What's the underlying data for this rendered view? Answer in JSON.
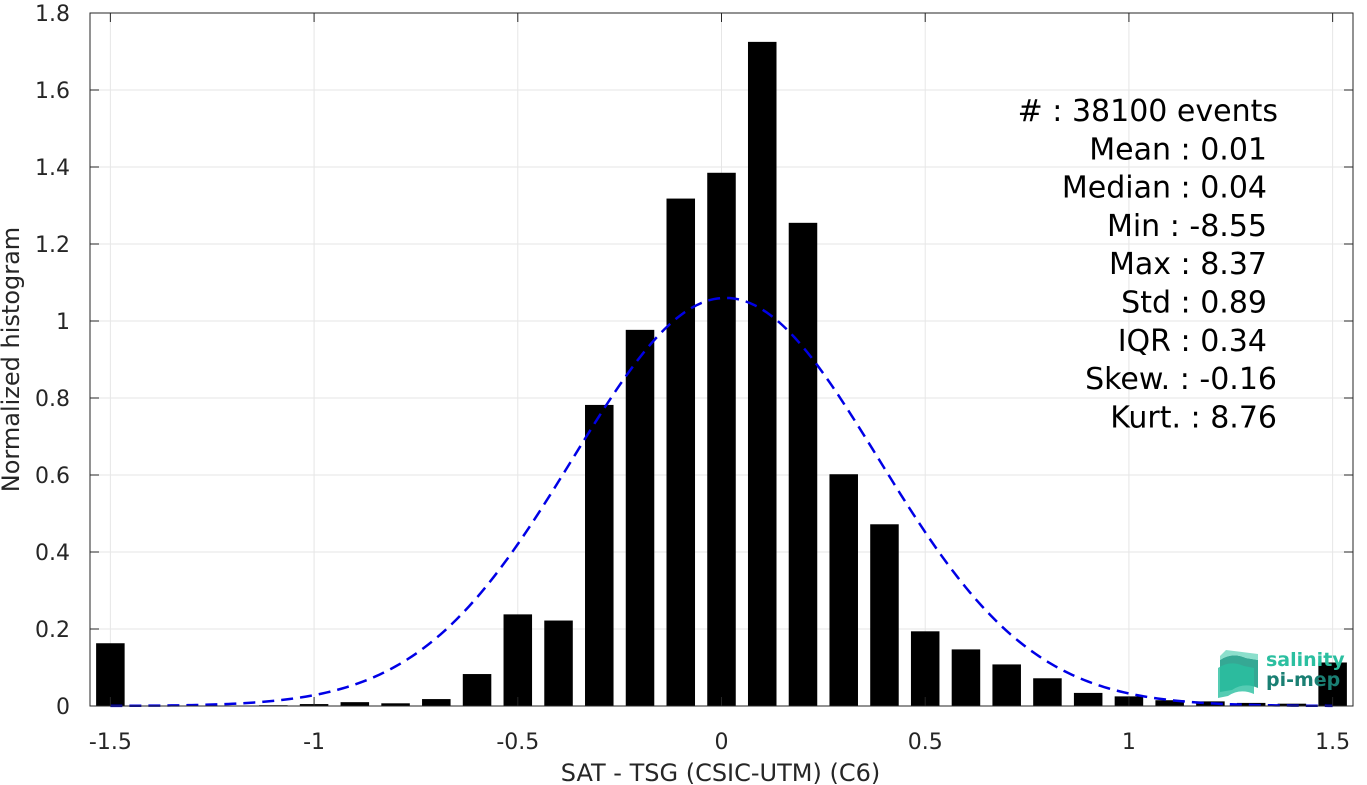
{
  "chart_data": {
    "type": "bar",
    "title": "",
    "xlabel": "SAT - TSG (CSIC-UTM) (C6)",
    "ylabel": "Normalized histogram",
    "xlim": [
      -1.55,
      1.55
    ],
    "ylim": [
      0,
      1.8
    ],
    "grid": true,
    "xticks": [
      -1.5,
      -1,
      -0.5,
      0,
      0.5,
      1,
      1.5
    ],
    "xtick_labels": [
      "-1.5",
      "-1",
      "-0.5",
      "0",
      "0.5",
      "1",
      "1.5"
    ],
    "yticks": [
      0,
      0.2,
      0.4,
      0.6,
      0.8,
      1,
      1.2,
      1.4,
      1.6,
      1.8
    ],
    "ytick_labels": [
      "0",
      "0.2",
      "0.4",
      "0.6",
      "0.8",
      "1",
      "1.2",
      "1.4",
      "1.6",
      "1.8"
    ],
    "bar_width": 0.07,
    "x": [
      -1.5,
      -1.4,
      -1.3,
      -1.2,
      -1.1,
      -1.0,
      -0.9,
      -0.8,
      -0.7,
      -0.6,
      -0.5,
      -0.4,
      -0.3,
      -0.2,
      -0.1,
      0.0,
      0.1,
      0.2,
      0.3,
      0.4,
      0.5,
      0.6,
      0.7,
      0.8,
      0.9,
      1.0,
      1.1,
      1.2,
      1.3,
      1.4,
      1.5
    ],
    "values": [
      0.163,
      0.001,
      0.001,
      0.001,
      0.002,
      0.005,
      0.01,
      0.007,
      0.018,
      0.083,
      0.238,
      0.222,
      0.782,
      0.977,
      1.318,
      1.385,
      1.725,
      1.255,
      0.602,
      0.472,
      0.194,
      0.147,
      0.108,
      0.072,
      0.034,
      0.025,
      0.015,
      0.012,
      0.008,
      0.006,
      0.113
    ],
    "fit_curve": {
      "style": "dashed",
      "color": "#0000e6",
      "mean": 0.01,
      "std": 0.375,
      "peak": 1.06
    },
    "bar_color": "#000000"
  },
  "stats": [
    {
      "label": "#",
      "sep": " : ",
      "value": "38100 events"
    },
    {
      "label": "Mean",
      "sep": " : ",
      "value": "0.01"
    },
    {
      "label": "Median",
      "sep": " : ",
      "value": "0.04"
    },
    {
      "label": "Min",
      "sep": " : ",
      "value": "-8.55"
    },
    {
      "label": "Max",
      "sep": " : ",
      "value": "8.37"
    },
    {
      "label": "Std",
      "sep": " : ",
      "value": "0.89"
    },
    {
      "label": "IQR",
      "sep": " : ",
      "value": "0.34"
    },
    {
      "label": "Skew.",
      "sep": " : ",
      "value": "-0.16"
    },
    {
      "label": "Kurt.",
      "sep": " : ",
      "value": "8.76"
    }
  ],
  "stat_lines": [
    "#  : 38100 events",
    "Mean : 0.01",
    "Median : 0.04",
    "Min : -8.55",
    "Max : 8.37",
    "Std : 0.89",
    "IQR : 0.34",
    "Skew. : -0.16",
    "Kurt. : 8.76"
  ],
  "logo": {
    "line1": "salinity",
    "line2": "pi-mep",
    "color1": "#2bbfa0",
    "color2": "#1a7f73"
  }
}
